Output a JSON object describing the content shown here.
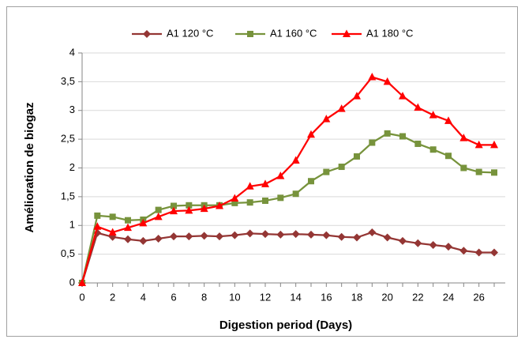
{
  "chart_data": {
    "type": "line",
    "x_label": "Digestion period (Days)",
    "y_label": "Amélioration de biogaz",
    "categories": [
      "0",
      null,
      "2",
      null,
      "4",
      null,
      "6",
      null,
      "8",
      null,
      "10",
      null,
      "12",
      null,
      "14",
      null,
      "16",
      null,
      "18",
      null,
      "20",
      null,
      "22",
      null,
      "24",
      null,
      "26",
      null
    ],
    "series": [
      {
        "name": "A1 120 °C",
        "color": "#943634",
        "marker": "diamond",
        "values": [
          0,
          0.87,
          0.8,
          0.76,
          0.73,
          0.77,
          0.81,
          0.81,
          0.82,
          0.81,
          0.83,
          0.86,
          0.85,
          0.84,
          0.85,
          0.84,
          0.83,
          0.8,
          0.79,
          0.88,
          0.79,
          0.73,
          0.69,
          0.66,
          0.63,
          0.56,
          0.53,
          0.53
        ]
      },
      {
        "name": "A1 160 °C",
        "color": "#77933c",
        "marker": "square",
        "values": [
          0,
          1.17,
          1.15,
          1.09,
          1.1,
          1.27,
          1.34,
          1.35,
          1.35,
          1.35,
          1.39,
          1.4,
          1.43,
          1.48,
          1.55,
          1.77,
          1.93,
          2.02,
          2.2,
          2.44,
          2.6,
          2.55,
          2.42,
          2.32,
          2.21,
          2.0,
          1.93,
          1.92
        ]
      },
      {
        "name": "A1 180 °C",
        "color": "#ff0000",
        "marker": "triangle",
        "values": [
          0,
          0.98,
          0.88,
          0.96,
          1.04,
          1.15,
          1.25,
          1.26,
          1.29,
          1.34,
          1.47,
          1.68,
          1.72,
          1.86,
          2.13,
          2.58,
          2.85,
          3.03,
          3.25,
          3.58,
          3.5,
          3.25,
          3.05,
          2.92,
          2.82,
          2.52,
          2.4,
          2.4
        ]
      }
    ],
    "ylim": [
      0,
      4
    ],
    "yticks": [
      0,
      {
        "value": 0.5,
        "label": "0,5"
      },
      1,
      {
        "value": 1.5,
        "label": "1,5"
      },
      2,
      {
        "value": 2.5,
        "label": "2,5"
      },
      3,
      {
        "value": 3.5,
        "label": "3,5"
      },
      4
    ],
    "grid": true,
    "legend": "top"
  }
}
